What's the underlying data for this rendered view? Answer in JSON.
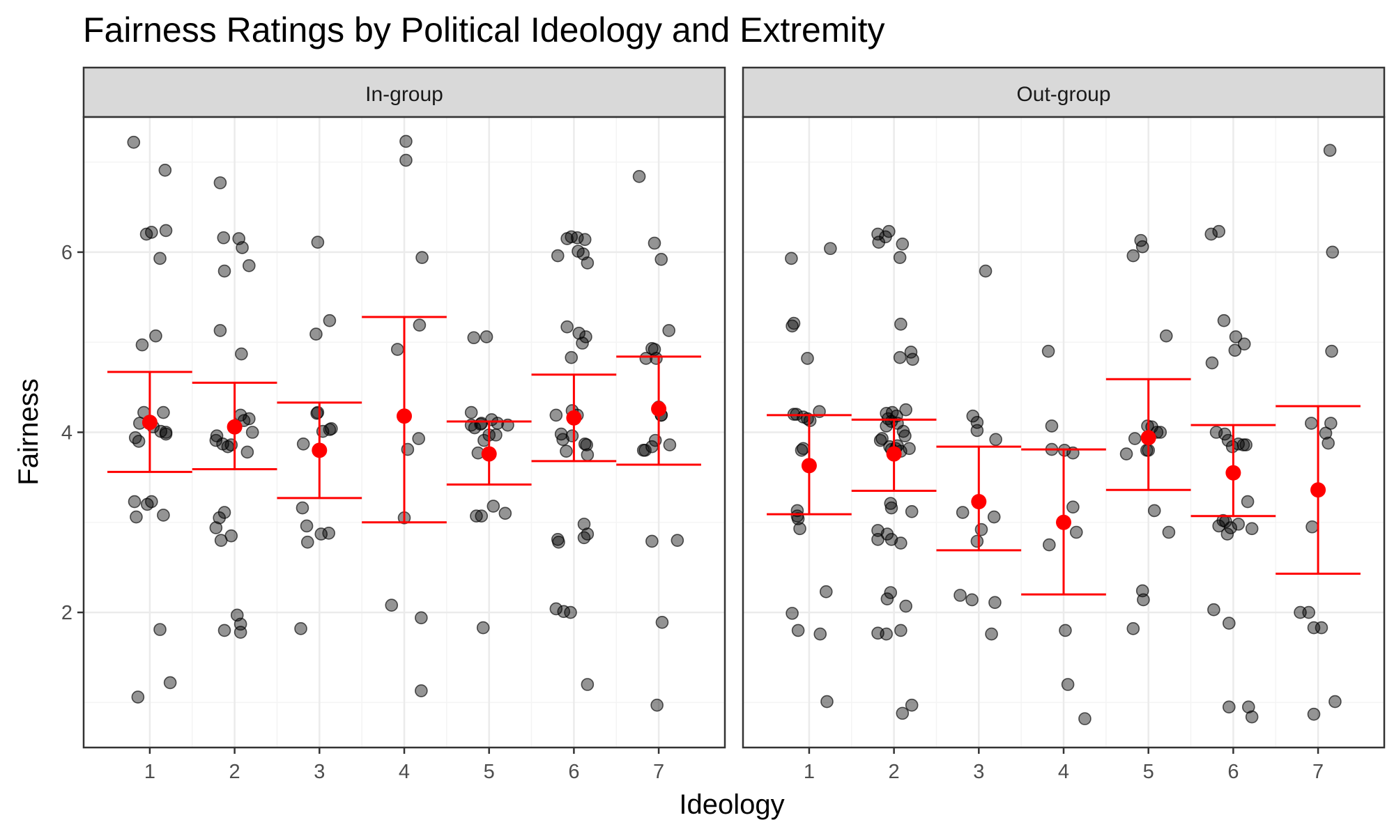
{
  "chart_data": {
    "type": "scatter",
    "title": "Fairness Ratings by Political Ideology and Extremity",
    "xlabel": "Ideology",
    "ylabel": "Fairness",
    "x_ticks": [
      "1",
      "2",
      "3",
      "4",
      "5",
      "6",
      "7"
    ],
    "y_ticks": [
      "2",
      "4",
      "6"
    ],
    "xlim": [
      0.22,
      7.78
    ],
    "ylim": [
      0.5,
      7.5
    ],
    "grid": true,
    "colors": {
      "points": "#000000",
      "summary": "#ff0000",
      "strip_fill": "#d9d9d9",
      "grid": "#ebebeb"
    },
    "panels": [
      {
        "name": "In-group",
        "points": [
          [
            0.81,
            7.22
          ],
          [
            1.18,
            6.91
          ],
          [
            0.96,
            6.2
          ],
          [
            1.02,
            6.22
          ],
          [
            1.19,
            6.24
          ],
          [
            1.12,
            5.93
          ],
          [
            1.07,
            5.07
          ],
          [
            0.91,
            4.97
          ],
          [
            0.93,
            4.22
          ],
          [
            1.16,
            4.22
          ],
          [
            0.88,
            4.1
          ],
          [
            1.04,
            4.06
          ],
          [
            0.83,
            3.94
          ],
          [
            0.87,
            3.9
          ],
          [
            1.13,
            4.01
          ],
          [
            1.19,
            3.98
          ],
          [
            1.19,
            4.0
          ],
          [
            0.82,
            3.23
          ],
          [
            0.97,
            3.2
          ],
          [
            1.02,
            3.23
          ],
          [
            0.84,
            3.06
          ],
          [
            1.16,
            3.08
          ],
          [
            1.12,
            1.81
          ],
          [
            1.24,
            1.22
          ],
          [
            0.86,
            1.06
          ],
          [
            1.83,
            6.77
          ],
          [
            1.87,
            6.16
          ],
          [
            2.05,
            6.15
          ],
          [
            2.09,
            6.05
          ],
          [
            1.88,
            5.79
          ],
          [
            2.17,
            5.85
          ],
          [
            1.83,
            5.13
          ],
          [
            2.08,
            4.87
          ],
          [
            2.07,
            4.19
          ],
          [
            2.11,
            4.13
          ],
          [
            2.17,
            4.15
          ],
          [
            2.21,
            4.0
          ],
          [
            1.79,
            3.96
          ],
          [
            1.78,
            3.91
          ],
          [
            1.86,
            3.87
          ],
          [
            1.96,
            3.86
          ],
          [
            2.15,
            3.78
          ],
          [
            1.92,
            3.84
          ],
          [
            1.88,
            3.11
          ],
          [
            1.82,
            3.05
          ],
          [
            1.78,
            2.94
          ],
          [
            1.84,
            2.8
          ],
          [
            1.96,
            2.85
          ],
          [
            2.03,
            1.97
          ],
          [
            2.07,
            1.87
          ],
          [
            1.88,
            1.8
          ],
          [
            2.07,
            1.78
          ],
          [
            2.98,
            6.11
          ],
          [
            3.12,
            5.24
          ],
          [
            2.96,
            5.09
          ],
          [
            2.97,
            4.21
          ],
          [
            2.98,
            4.22
          ],
          [
            3.14,
            4.04
          ],
          [
            3.12,
            4.03
          ],
          [
            3.04,
            4.01
          ],
          [
            2.81,
            3.87
          ],
          [
            2.8,
            3.16
          ],
          [
            2.85,
            2.96
          ],
          [
            3.02,
            2.87
          ],
          [
            3.11,
            2.88
          ],
          [
            2.86,
            2.78
          ],
          [
            2.78,
            1.82
          ],
          [
            4.02,
            7.23
          ],
          [
            4.02,
            7.02
          ],
          [
            4.21,
            5.94
          ],
          [
            4.18,
            5.19
          ],
          [
            3.92,
            4.92
          ],
          [
            4.17,
            3.93
          ],
          [
            4.04,
            3.81
          ],
          [
            4.0,
            3.05
          ],
          [
            3.85,
            2.08
          ],
          [
            4.2,
            1.94
          ],
          [
            4.2,
            1.13
          ],
          [
            4.82,
            5.05
          ],
          [
            4.97,
            5.06
          ],
          [
            4.79,
            4.22
          ],
          [
            4.91,
            4.1
          ],
          [
            4.79,
            4.08
          ],
          [
            4.9,
            4.09
          ],
          [
            5.03,
            4.14
          ],
          [
            5.1,
            4.1
          ],
          [
            5.22,
            4.08
          ],
          [
            4.83,
            4.05
          ],
          [
            5.0,
            3.97
          ],
          [
            5.08,
            3.97
          ],
          [
            4.94,
            3.91
          ],
          [
            4.87,
            3.77
          ],
          [
            4.85,
            3.07
          ],
          [
            4.91,
            3.07
          ],
          [
            5.05,
            3.18
          ],
          [
            5.19,
            3.1
          ],
          [
            4.93,
            1.83
          ],
          [
            5.92,
            6.15
          ],
          [
            5.97,
            6.17
          ],
          [
            6.04,
            6.16
          ],
          [
            6.13,
            6.14
          ],
          [
            6.05,
            6.01
          ],
          [
            6.11,
            5.98
          ],
          [
            5.81,
            5.96
          ],
          [
            6.16,
            5.88
          ],
          [
            5.92,
            5.17
          ],
          [
            6.06,
            5.1
          ],
          [
            6.14,
            5.06
          ],
          [
            6.1,
            4.99
          ],
          [
            5.97,
            4.83
          ],
          [
            5.79,
            4.19
          ],
          [
            5.98,
            4.24
          ],
          [
            6.04,
            4.19
          ],
          [
            5.85,
            3.98
          ],
          [
            5.87,
            3.92
          ],
          [
            5.98,
            3.96
          ],
          [
            6.13,
            3.87
          ],
          [
            6.15,
            3.86
          ],
          [
            5.91,
            3.79
          ],
          [
            6.16,
            3.75
          ],
          [
            6.12,
            2.98
          ],
          [
            6.16,
            2.87
          ],
          [
            6.12,
            2.83
          ],
          [
            5.81,
            2.81
          ],
          [
            5.82,
            2.78
          ],
          [
            5.79,
            2.04
          ],
          [
            5.88,
            2.01
          ],
          [
            5.96,
            2.0
          ],
          [
            6.16,
            1.2
          ],
          [
            6.77,
            6.84
          ],
          [
            6.95,
            6.1
          ],
          [
            7.03,
            5.92
          ],
          [
            7.12,
            5.13
          ],
          [
            6.92,
            4.93
          ],
          [
            6.95,
            4.92
          ],
          [
            6.85,
            4.82
          ],
          [
            6.97,
            4.82
          ],
          [
            7.0,
            4.28
          ],
          [
            7.03,
            4.19
          ],
          [
            7.03,
            4.19
          ],
          [
            6.96,
            3.91
          ],
          [
            6.92,
            3.84
          ],
          [
            6.82,
            3.8
          ],
          [
            6.84,
            3.8
          ],
          [
            7.13,
            3.86
          ],
          [
            6.92,
            2.79
          ],
          [
            7.22,
            2.8
          ],
          [
            7.04,
            1.89
          ],
          [
            6.98,
            0.97
          ]
        ],
        "means": [
          4.11,
          4.06,
          3.8,
          4.18,
          3.76,
          4.16,
          4.26
        ],
        "ci_upper": [
          4.67,
          4.55,
          4.33,
          5.28,
          4.12,
          4.64,
          4.84
        ],
        "ci_lower": [
          3.56,
          3.59,
          3.27,
          3.0,
          3.42,
          3.68,
          3.64
        ]
      },
      {
        "name": "Out-group",
        "points": [
          [
            0.79,
            5.93
          ],
          [
            1.25,
            6.04
          ],
          [
            0.8,
            5.18
          ],
          [
            0.82,
            5.21
          ],
          [
            0.98,
            4.82
          ],
          [
            0.82,
            4.2
          ],
          [
            0.85,
            4.2
          ],
          [
            0.93,
            4.17
          ],
          [
            0.98,
            4.15
          ],
          [
            1.01,
            4.13
          ],
          [
            1.12,
            4.23
          ],
          [
            0.91,
            3.8
          ],
          [
            0.93,
            3.82
          ],
          [
            0.86,
            3.13
          ],
          [
            0.86,
            3.07
          ],
          [
            0.87,
            3.04
          ],
          [
            0.89,
            2.93
          ],
          [
            0.8,
            1.99
          ],
          [
            1.2,
            2.23
          ],
          [
            0.87,
            1.8
          ],
          [
            1.13,
            1.76
          ],
          [
            1.21,
            1.01
          ],
          [
            1.81,
            6.2
          ],
          [
            1.82,
            6.11
          ],
          [
            1.9,
            6.17
          ],
          [
            1.94,
            6.23
          ],
          [
            2.1,
            6.09
          ],
          [
            2.07,
            5.94
          ],
          [
            2.08,
            5.2
          ],
          [
            2.2,
            4.89
          ],
          [
            2.22,
            4.81
          ],
          [
            2.07,
            4.83
          ],
          [
            1.91,
            4.21
          ],
          [
            1.98,
            4.22
          ],
          [
            2.14,
            4.25
          ],
          [
            2.03,
            4.18
          ],
          [
            1.93,
            4.15
          ],
          [
            1.97,
            4.12
          ],
          [
            2.04,
            4.1
          ],
          [
            1.91,
            4.07
          ],
          [
            2.11,
            4.01
          ],
          [
            2.13,
            3.96
          ],
          [
            1.86,
            3.93
          ],
          [
            1.84,
            3.91
          ],
          [
            1.95,
            3.84
          ],
          [
            2.02,
            3.82
          ],
          [
            2.18,
            3.82
          ],
          [
            2.04,
            3.85
          ],
          [
            1.97,
            3.81
          ],
          [
            2.08,
            3.79
          ],
          [
            1.96,
            3.21
          ],
          [
            1.97,
            3.16
          ],
          [
            2.21,
            3.12
          ],
          [
            1.81,
            2.91
          ],
          [
            1.92,
            2.87
          ],
          [
            1.97,
            2.81
          ],
          [
            1.81,
            2.81
          ],
          [
            2.08,
            2.77
          ],
          [
            1.96,
            2.22
          ],
          [
            2.14,
            2.07
          ],
          [
            1.92,
            2.15
          ],
          [
            1.81,
            1.77
          ],
          [
            1.91,
            1.76
          ],
          [
            2.08,
            1.8
          ],
          [
            2.21,
            0.97
          ],
          [
            2.1,
            0.88
          ],
          [
            3.08,
            5.79
          ],
          [
            2.93,
            4.18
          ],
          [
            2.98,
            4.11
          ],
          [
            2.98,
            4.02
          ],
          [
            3.2,
            3.92
          ],
          [
            2.81,
            3.11
          ],
          [
            3.18,
            3.06
          ],
          [
            3.03,
            2.92
          ],
          [
            2.98,
            2.79
          ],
          [
            2.78,
            2.19
          ],
          [
            2.92,
            2.14
          ],
          [
            3.19,
            2.11
          ],
          [
            3.15,
            1.76
          ],
          [
            3.82,
            4.9
          ],
          [
            3.86,
            3.81
          ],
          [
            3.86,
            4.07
          ],
          [
            4.11,
            3.77
          ],
          [
            4.01,
            3.8
          ],
          [
            4.11,
            3.17
          ],
          [
            4.15,
            2.89
          ],
          [
            3.83,
            2.75
          ],
          [
            4.02,
            1.8
          ],
          [
            4.05,
            1.2
          ],
          [
            4.25,
            0.82
          ],
          [
            4.91,
            6.13
          ],
          [
            4.93,
            6.06
          ],
          [
            4.82,
            5.96
          ],
          [
            5.21,
            5.07
          ],
          [
            4.99,
            4.07
          ],
          [
            5.04,
            4.06
          ],
          [
            5.1,
            4.0
          ],
          [
            5.14,
            4.0
          ],
          [
            4.84,
            3.93
          ],
          [
            4.74,
            3.76
          ],
          [
            4.98,
            3.8
          ],
          [
            5.0,
            3.8
          ],
          [
            5.07,
            3.13
          ],
          [
            5.24,
            2.89
          ],
          [
            4.93,
            2.24
          ],
          [
            4.94,
            2.14
          ],
          [
            4.82,
            1.82
          ],
          [
            5.74,
            6.2
          ],
          [
            5.83,
            6.23
          ],
          [
            5.89,
            5.24
          ],
          [
            5.75,
            4.77
          ],
          [
            6.03,
            5.06
          ],
          [
            6.13,
            4.98
          ],
          [
            6.02,
            4.91
          ],
          [
            5.8,
            4.0
          ],
          [
            5.9,
            3.98
          ],
          [
            6.12,
            3.86
          ],
          [
            6.15,
            3.86
          ],
          [
            5.94,
            3.91
          ],
          [
            5.99,
            3.84
          ],
          [
            6.06,
            3.87
          ],
          [
            6.17,
            3.23
          ],
          [
            5.91,
            3.01
          ],
          [
            5.88,
            3.02
          ],
          [
            5.83,
            2.96
          ],
          [
            5.97,
            2.94
          ],
          [
            6.06,
            2.98
          ],
          [
            6.22,
            2.93
          ],
          [
            5.93,
            2.87
          ],
          [
            5.77,
            2.03
          ],
          [
            5.95,
            1.88
          ],
          [
            5.95,
            0.95
          ],
          [
            6.18,
            0.95
          ],
          [
            6.22,
            0.84
          ],
          [
            6.92,
            4.1
          ],
          [
            7.15,
            4.1
          ],
          [
            7.09,
            3.99
          ],
          [
            7.12,
            3.88
          ],
          [
            6.93,
            2.95
          ],
          [
            6.79,
            2.0
          ],
          [
            6.89,
            2.0
          ],
          [
            7.04,
            1.83
          ],
          [
            6.95,
            1.83
          ],
          [
            7.14,
            7.13
          ],
          [
            7.17,
            6.0
          ],
          [
            7.16,
            4.9
          ],
          [
            6.95,
            0.87
          ],
          [
            7.2,
            1.01
          ]
        ],
        "means": [
          3.63,
          3.76,
          3.23,
          3.0,
          3.94,
          3.55,
          3.36
        ],
        "ci_upper": [
          4.19,
          4.14,
          3.84,
          3.81,
          4.59,
          4.08,
          4.29
        ],
        "ci_lower": [
          3.09,
          3.35,
          2.69,
          2.2,
          3.36,
          3.07,
          2.43
        ]
      }
    ]
  }
}
